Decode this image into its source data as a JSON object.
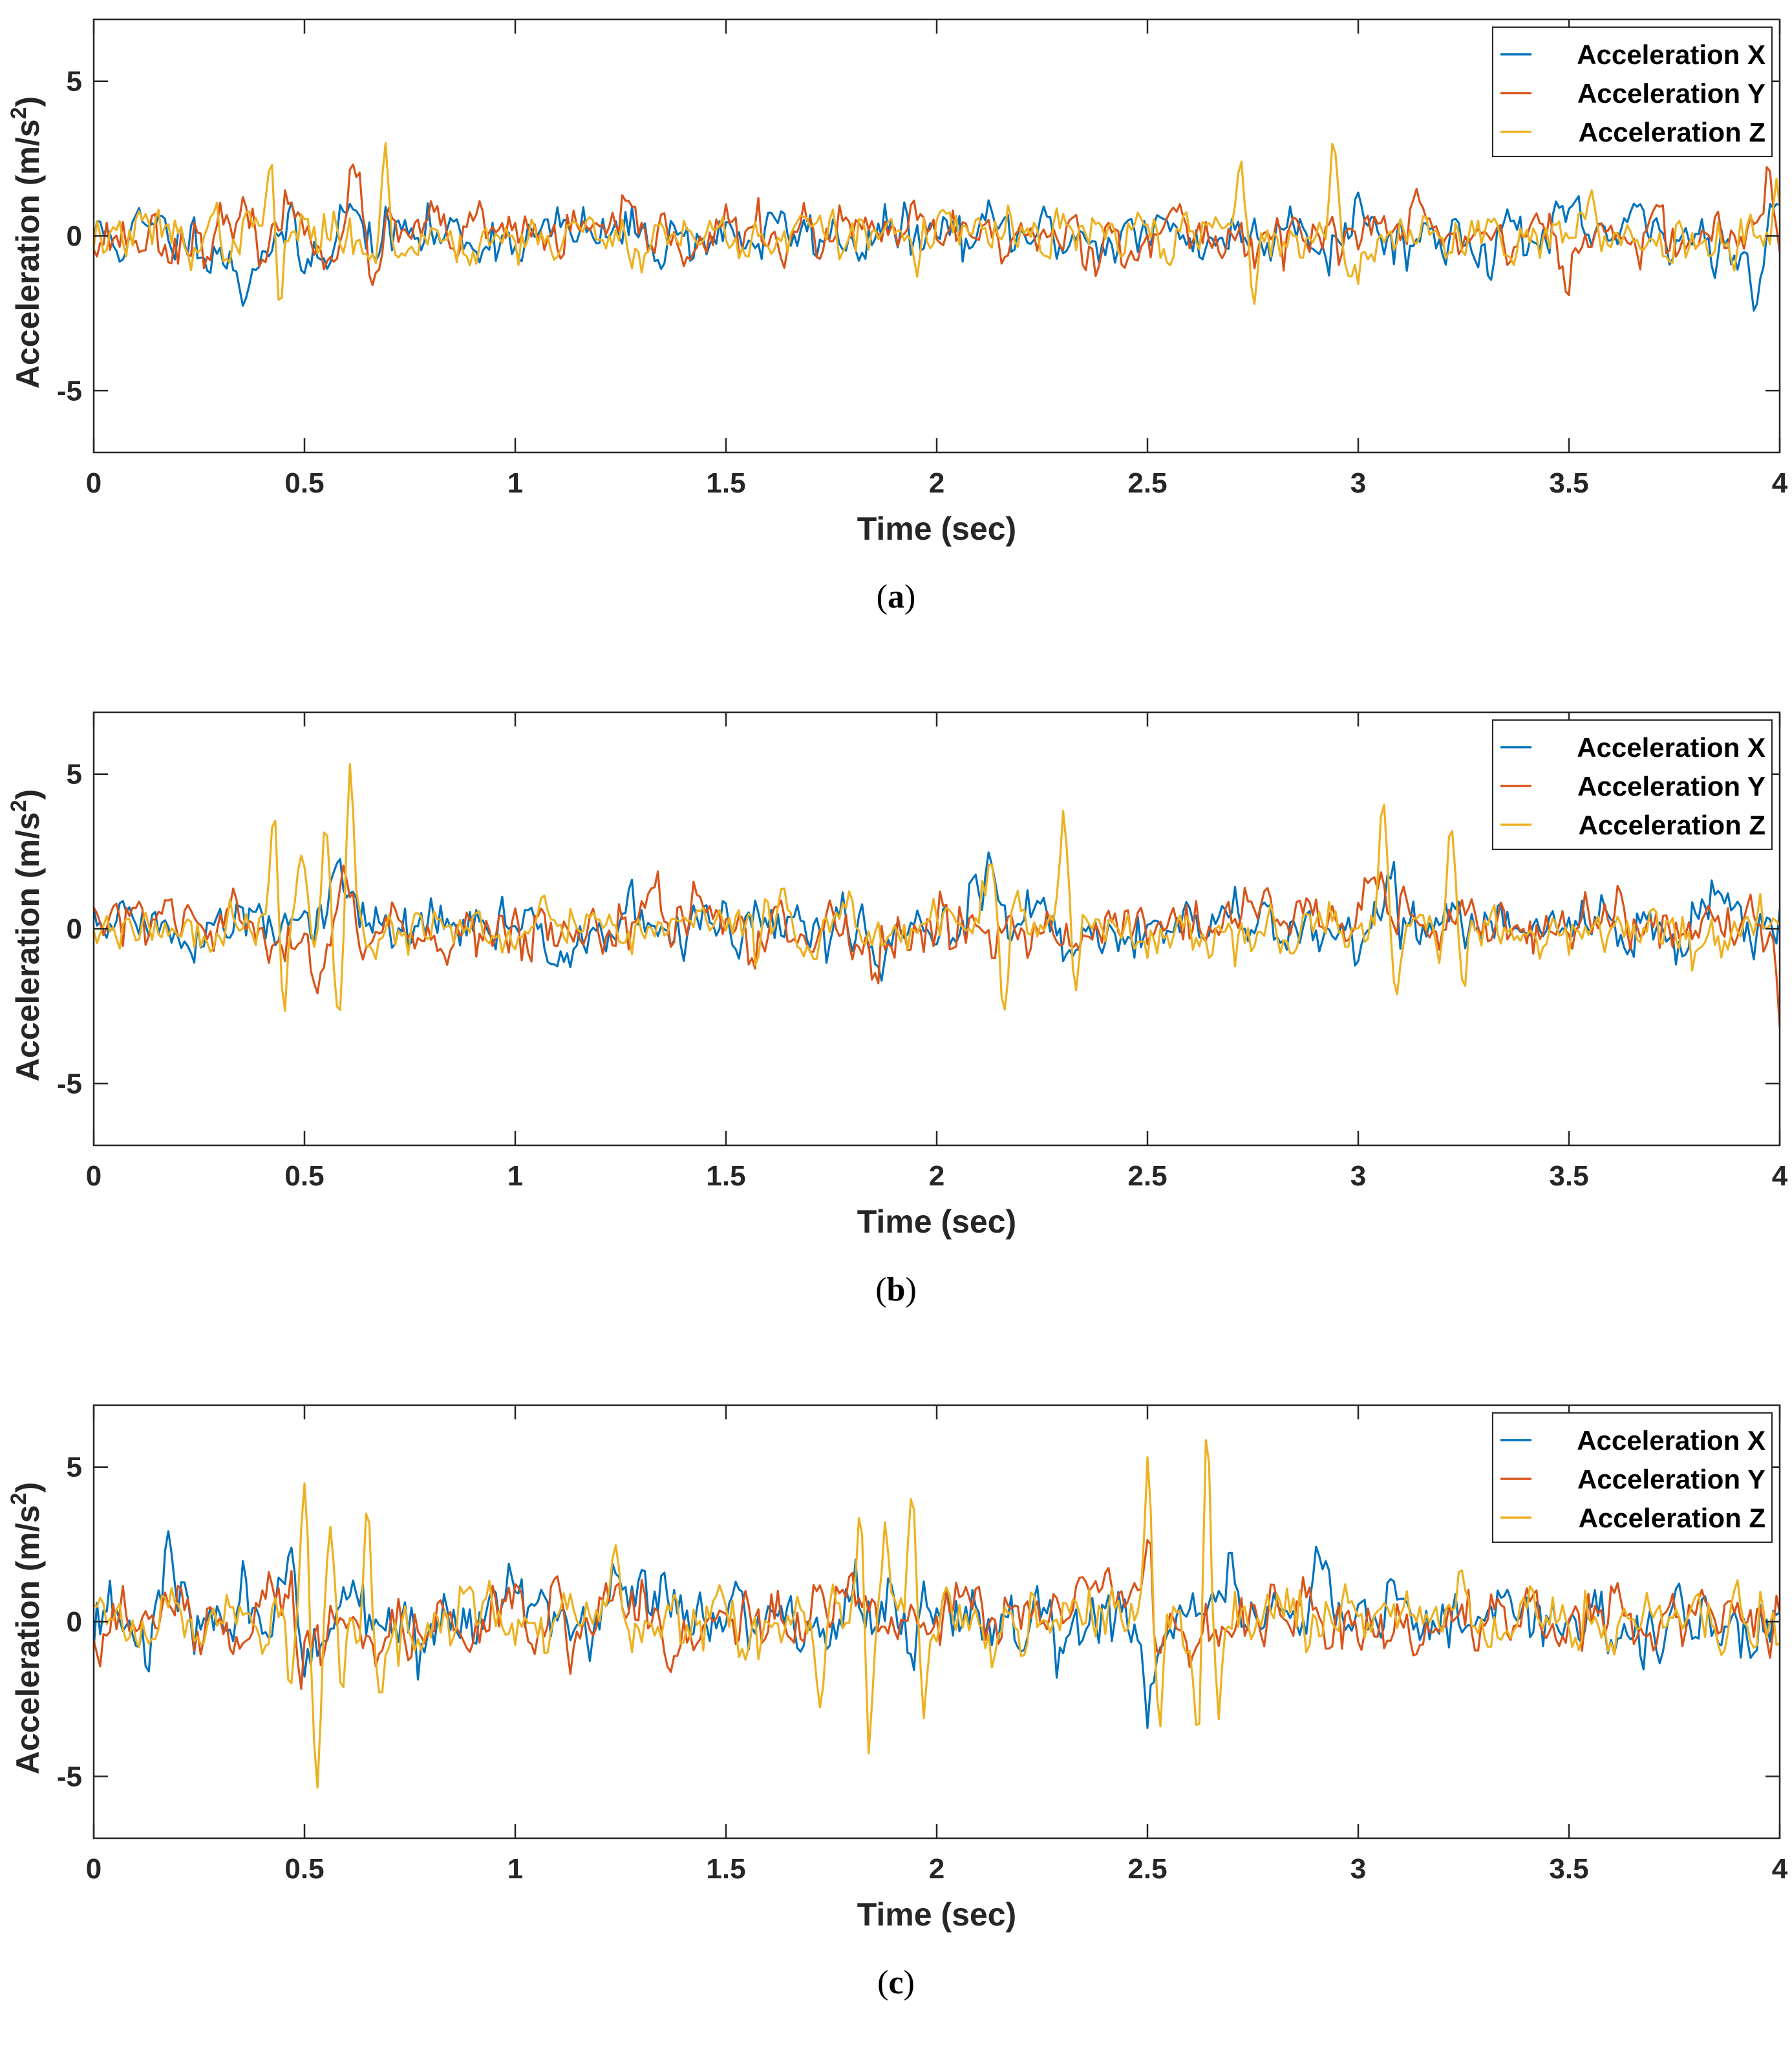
{
  "chart_data": [
    {
      "type": "line",
      "panel": "a",
      "caption": {
        "open": "(",
        "letter": "a",
        "close": ")"
      },
      "xlabel": "Time (sec)",
      "ylabel": "Acceleration (m/s",
      "ylabel_sup": "2",
      "ylabel_close": ")",
      "xlim": [
        0,
        4
      ],
      "ylim": [
        -7,
        7
      ],
      "xticks": [
        0,
        0.5,
        1,
        1.5,
        2,
        2.5,
        3,
        3.5,
        4
      ],
      "xtick_labels": [
        "0",
        "0.5",
        "1",
        "1.5",
        "2",
        "2.5",
        "3",
        "3.5",
        "4"
      ],
      "yticks": [
        -5,
        0,
        5
      ],
      "ytick_labels": [
        "-5",
        "0",
        "5"
      ],
      "legend_position": "top-right",
      "series": [
        {
          "name": "Acceleration X",
          "color": "#0072BD",
          "seed": 11,
          "noise": 0.42,
          "bursts": [
            [
              0.35,
              0.06,
              -1.6
            ],
            [
              0.5,
              0.04,
              -1.2
            ],
            [
              0.6,
              0.04,
              0.9
            ],
            [
              2.85,
              0.05,
              1.0
            ],
            [
              3.0,
              0.05,
              0.9
            ],
            [
              3.94,
              0.03,
              -2.5
            ],
            [
              3.98,
              0.03,
              1.1
            ]
          ]
        },
        {
          "name": "Acceleration Y",
          "color": "#D95319",
          "seed": 23,
          "noise": 0.4,
          "bursts": [
            [
              0.47,
              0.03,
              1.3
            ],
            [
              0.62,
              0.04,
              1.5
            ],
            [
              0.67,
              0.03,
              -1.6
            ],
            [
              3.13,
              0.05,
              1.0
            ],
            [
              3.5,
              0.05,
              -1.1
            ],
            [
              3.97,
              0.03,
              1.5
            ]
          ]
        },
        {
          "name": "Acceleration Z",
          "color": "#EDB120",
          "seed": 37,
          "noise": 0.38,
          "bursts": [
            [
              0.42,
              0.02,
              2.9
            ],
            [
              0.44,
              0.02,
              -2.5
            ],
            [
              0.69,
              0.02,
              2.7
            ],
            [
              0.72,
              0.03,
              -1.2
            ],
            [
              2.72,
              0.02,
              2.5
            ],
            [
              2.75,
              0.02,
              -2.0
            ],
            [
              2.94,
              0.02,
              2.5
            ],
            [
              2.98,
              0.03,
              -2.0
            ],
            [
              3.33,
              0.03,
              1.0
            ],
            [
              3.99,
              0.02,
              2.1
            ]
          ]
        }
      ]
    },
    {
      "type": "line",
      "panel": "b",
      "caption": {
        "open": "(",
        "letter": "b",
        "close": ")"
      },
      "xlabel": "Time (sec)",
      "ylabel": "Acceleration (m/s",
      "ylabel_sup": "2",
      "ylabel_close": ")",
      "xlim": [
        0,
        4
      ],
      "ylim": [
        -7,
        7
      ],
      "xticks": [
        0,
        0.5,
        1,
        1.5,
        2,
        2.5,
        3,
        3.5,
        4
      ],
      "xtick_labels": [
        "0",
        "0.5",
        "1",
        "1.5",
        "2",
        "2.5",
        "3",
        "3.5",
        "4"
      ],
      "yticks": [
        -5,
        0,
        5
      ],
      "ytick_labels": [
        "-5",
        "0",
        "5"
      ],
      "legend_position": "top-right",
      "series": [
        {
          "name": "Acceleration X",
          "color": "#0072BD",
          "seed": 51,
          "noise": 0.45,
          "bursts": [
            [
              0.05,
              0.05,
              0.8
            ],
            [
              0.58,
              0.05,
              1.5
            ],
            [
              1.86,
              0.03,
              -1.8
            ],
            [
              2.09,
              0.03,
              1.9
            ],
            [
              2.13,
              0.03,
              1.8
            ],
            [
              3.07,
              0.05,
              1.5
            ],
            [
              3.85,
              0.04,
              1.2
            ]
          ]
        },
        {
          "name": "Acceleration Y",
          "color": "#D95319",
          "seed": 63,
          "noise": 0.42,
          "bursts": [
            [
              0.53,
              0.03,
              -2.0
            ],
            [
              0.59,
              0.03,
              1.4
            ],
            [
              1.33,
              0.03,
              1.2
            ],
            [
              1.85,
              0.03,
              -1.6
            ],
            [
              2.8,
              0.15,
              0.8
            ],
            [
              3.05,
              0.1,
              1.0
            ],
            [
              4.0,
              0.02,
              -2.2
            ]
          ]
        },
        {
          "name": "Acceleration Z",
          "color": "#EDB120",
          "seed": 77,
          "noise": 0.4,
          "bursts": [
            [
              0.43,
              0.02,
              3.5
            ],
            [
              0.45,
              0.02,
              -2.5
            ],
            [
              0.49,
              0.02,
              2.1
            ],
            [
              0.55,
              0.02,
              3.0
            ],
            [
              0.58,
              0.02,
              -2.6
            ],
            [
              0.61,
              0.02,
              4.3
            ],
            [
              2.13,
              0.02,
              2.7
            ],
            [
              2.16,
              0.02,
              -2.7
            ],
            [
              2.3,
              0.02,
              3.5
            ],
            [
              2.33,
              0.02,
              -2.1
            ],
            [
              3.06,
              0.02,
              3.8
            ],
            [
              3.09,
              0.02,
              -2.6
            ],
            [
              3.22,
              0.02,
              3.6
            ],
            [
              3.25,
              0.02,
              -2.0
            ]
          ]
        }
      ]
    },
    {
      "type": "line",
      "panel": "c",
      "caption": {
        "open": "(",
        "letter": "c",
        "close": ")"
      },
      "xlabel": "Time (sec)",
      "ylabel": "Acceleration (m/s",
      "ylabel_sup": "2",
      "ylabel_close": ")",
      "xlim": [
        0,
        4
      ],
      "ylim": [
        -7,
        7
      ],
      "xticks": [
        0,
        0.5,
        1,
        1.5,
        2,
        2.5,
        3,
        3.5,
        4
      ],
      "xtick_labels": [
        "0",
        "0.5",
        "1",
        "1.5",
        "2",
        "2.5",
        "3",
        "3.5",
        "4"
      ],
      "yticks": [
        -5,
        0,
        5
      ],
      "ytick_labels": [
        "-5",
        "0",
        "5"
      ],
      "legend_position": "top-right",
      "series": [
        {
          "name": "Acceleration X",
          "color": "#0072BD",
          "seed": 91,
          "noise": 0.55,
          "bursts": [
            [
              0.18,
              0.05,
              1.5
            ],
            [
              0.47,
              0.03,
              2.0
            ],
            [
              0.5,
              0.03,
              -1.7
            ],
            [
              1.25,
              0.05,
              1.0
            ],
            [
              1.8,
              0.03,
              2.0
            ],
            [
              2.5,
              0.03,
              -2.3
            ],
            [
              2.7,
              0.05,
              1.8
            ],
            [
              2.9,
              0.05,
              1.8
            ]
          ]
        },
        {
          "name": "Acceleration Y",
          "color": "#D95319",
          "seed": 103,
          "noise": 0.5,
          "bursts": [
            [
              0.47,
              0.02,
              2.4
            ],
            [
              0.49,
              0.02,
              -1.5
            ],
            [
              1.37,
              0.03,
              -1.8
            ],
            [
              1.8,
              0.03,
              2.0
            ],
            [
              2.1,
              0.15,
              1.0
            ],
            [
              2.35,
              0.15,
              1.1
            ],
            [
              2.5,
              0.03,
              2.7
            ],
            [
              2.52,
              0.03,
              -2.0
            ]
          ]
        },
        {
          "name": "Acceleration Z",
          "color": "#EDB120",
          "seed": 117,
          "noise": 0.45,
          "bursts": [
            [
              0.47,
              0.02,
              -2.6
            ],
            [
              0.5,
              0.02,
              4.5
            ],
            [
              0.53,
              0.02,
              -4.8
            ],
            [
              0.56,
              0.02,
              3.3
            ],
            [
              0.59,
              0.02,
              -2.4
            ],
            [
              0.65,
              0.02,
              4.5
            ],
            [
              0.68,
              0.02,
              -2.4
            ],
            [
              1.24,
              0.02,
              2.4
            ],
            [
              1.38,
              0.02,
              1.6
            ],
            [
              1.72,
              0.02,
              -2.8
            ],
            [
              1.82,
              0.02,
              3.5
            ],
            [
              1.84,
              0.02,
              -3.9
            ],
            [
              1.88,
              0.02,
              3.2
            ],
            [
              1.94,
              0.02,
              4.5
            ],
            [
              1.97,
              0.02,
              -2.3
            ],
            [
              2.5,
              0.02,
              4.9
            ],
            [
              2.53,
              0.02,
              -3.0
            ],
            [
              2.62,
              0.02,
              -4.8
            ],
            [
              2.64,
              0.02,
              6.3
            ],
            [
              2.67,
              0.02,
              -3.3
            ]
          ]
        }
      ]
    }
  ]
}
